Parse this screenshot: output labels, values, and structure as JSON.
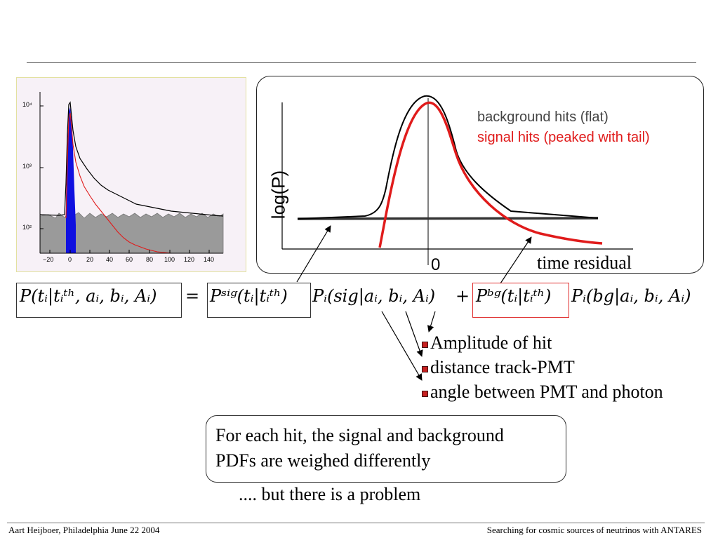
{
  "histogram": {
    "y_ticks": [
      "10⁴",
      "10³",
      "10²"
    ],
    "x_ticks": [
      "−20",
      "0",
      "20",
      "40",
      "60",
      "80",
      "100",
      "120",
      "140"
    ]
  },
  "sketch": {
    "ylabel": "log(P)",
    "zero_label": "0",
    "xlabel": "time residual",
    "legend_background": "background hits (flat)",
    "legend_signal": "signal hits (peaked with tail)",
    "colors": {
      "background": "#000000",
      "signal": "#e01b1b",
      "legend_background_text": "#444444"
    }
  },
  "equation": {
    "lhs": "P(tᵢ|tᵢᵗʰ, aᵢ, bᵢ, Aᵢ)",
    "equals": "=",
    "sig_term": "Pˢⁱᵍ(tᵢ|tᵢᵗʰ)",
    "sig_prob": "Pᵢ(sig|aᵢ, bᵢ, Aᵢ)",
    "plus": "+",
    "bg_term": "Pᵇᵍ(tᵢ|tᵢᵗʰ)",
    "bg_prob": "Pᵢ(bg|aᵢ, bᵢ, Aᵢ)"
  },
  "bullets": [
    "Amplitude of hit",
    "distance track-PMT",
    "angle between PMT and photon"
  ],
  "note": {
    "line1": "For each hit, the signal and background",
    "line2": "PDFs are weighed differently"
  },
  "problem_text": ".... but there is a problem",
  "footer": {
    "left": "Aart Heijboer, Philadelphia June 22 2004",
    "right": "Searching for cosmic sources of neutrinos with ANTARES"
  }
}
